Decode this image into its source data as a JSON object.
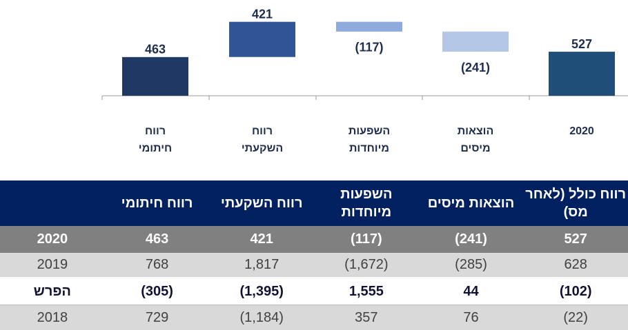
{
  "chart_data": {
    "type": "waterfall",
    "categories": [
      "2020",
      "הוצאות מיסים",
      "השפעות מיוחדות",
      "רווח השקעתי",
      "רווח חיתומי"
    ],
    "values": [
      527,
      -241,
      -117,
      421,
      463
    ],
    "value_labels": [
      "527",
      "(241)",
      "(117)",
      "421",
      "463"
    ],
    "measure": [
      "total",
      "relative",
      "relative",
      "relative",
      "total"
    ],
    "colors": [
      "#1f4e79",
      "#b4c7e7",
      "#8faadc",
      "#2f5597",
      "#203864"
    ]
  },
  "table": {
    "header": [
      "רווח כולל (לאחר מס)",
      "הוצאות מיסים",
      "השפעות מיוחדות",
      "רווח השקעתי",
      "רווח חיתומי"
    ],
    "rows": [
      {
        "label": "2020",
        "cells": [
          "527",
          "(241)",
          "(117)",
          "421",
          "463"
        ]
      },
      {
        "label": "2019",
        "cells": [
          "628",
          "(285)",
          "(1,672)",
          "1,817",
          "768"
        ]
      },
      {
        "label": "הפרש",
        "cells": [
          "(102)",
          "44",
          "1,555",
          "(1,395)",
          "(305)"
        ]
      },
      {
        "label": "2018",
        "cells": [
          "(22)",
          "76",
          "357",
          "(1,184)",
          "729"
        ]
      }
    ]
  }
}
